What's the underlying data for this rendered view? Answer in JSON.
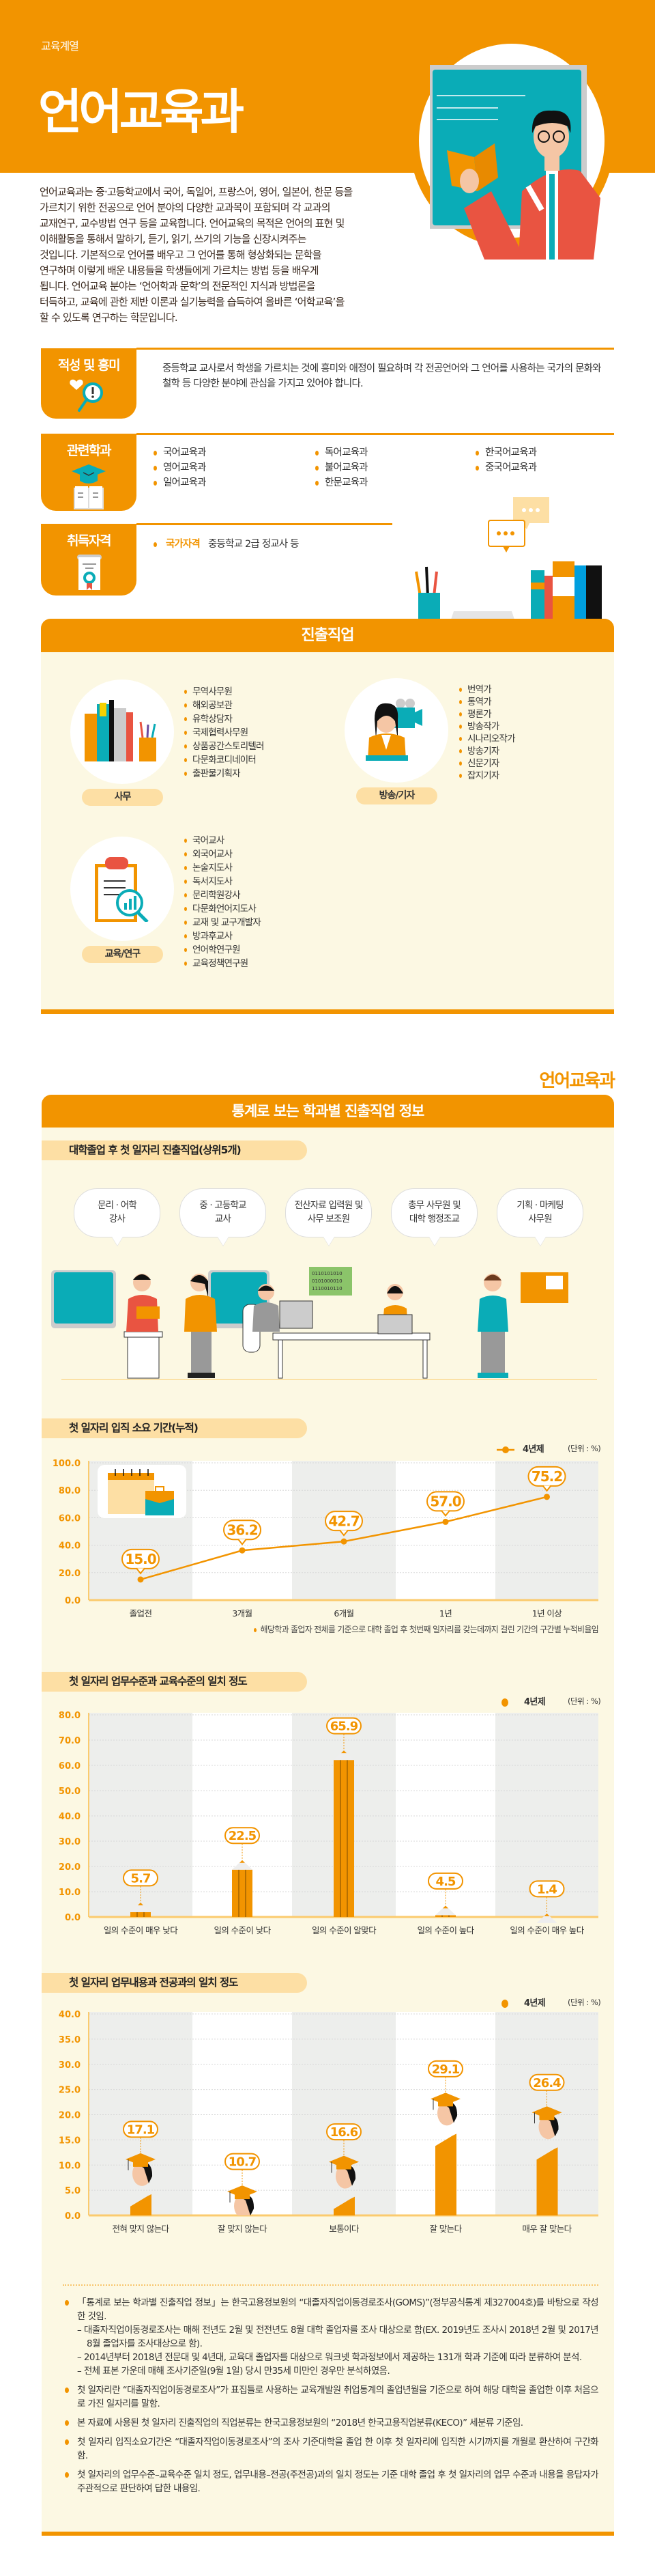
{
  "hero": {
    "category": "교육계열",
    "title": "언어교육과",
    "intro_lines": [
      "언어교육과는 중·고등학교에서 국어, 독일어, 프랑스어, 영어, 일본어, 한문 등을",
      "가르치기 위한 전공으로 언어 분야의 다양한 교과목이 포함되며 각 교과의",
      "교재연구, 교수방법 연구 등을 교육합니다. 언어교육의 목적은 언어의 표현 및",
      "이해활동을 통해서 말하기, 듣기, 읽기, 쓰기의 기능을 신장시켜주는",
      "것입니다. 기본적으로 언어를 배우고 그 언어를 통해 형상화되는 문학을",
      "연구하며 이렇게 배운 내용들을 학생들에게 가르치는 방법 등을 배우게",
      "됩니다. 언어교육 분야는 ‘언어학과 문학’의 전문적인 지식과 방법론을",
      "터득하고, 교육에 관한 제반 이론과 실기능력을 습득하여 올바른 ‘어학교육’을",
      "할 수 있도록 연구하는 학문입니다."
    ]
  },
  "aptitude": {
    "label": "적성 및 흥미",
    "icon": "heart-magnifier-icon",
    "text": "중등학교 교사로서 학생을 가르치는 것에 흥미와 애정이 필요하며 각 전공언어와 그 언어를 사용하는 국가의 문화와 철학 등 다양한 분야에 관심을 가지고 있어야 합니다."
  },
  "related": {
    "label": "관련학과",
    "icon": "graduation-cap-book-icon",
    "columns": [
      [
        "국어교육과",
        "영어교육과",
        "일어교육과"
      ],
      [
        "독어교육과",
        "불어교육과",
        "한문교육과"
      ],
      [
        "한국어교육과",
        "중국어교육과"
      ]
    ]
  },
  "license": {
    "label": "취득자격",
    "icon": "certificate-icon",
    "type": "국가자격",
    "text": "중등학교 2급 정교사 등"
  },
  "careers": {
    "title": "진출직업",
    "groups": [
      {
        "label": "사무",
        "icon": "books-icon",
        "items": [
          "무역사무원",
          "해외공보관",
          "유학상담자",
          "국제협력사무원",
          "상품공간스토리텔러",
          "다문화코디네이터",
          "출판물기획자"
        ]
      },
      {
        "label": "방송/기자",
        "icon": "reporter-camera-icon",
        "items": [
          "번역가",
          "통역가",
          "평론가",
          "방송작가",
          "시나리오작가",
          "방송기자",
          "신문기자",
          "잡지기자"
        ]
      },
      {
        "label": "교육/연구",
        "icon": "clipboard-chart-icon",
        "items": [
          "국어교사",
          "외국어교사",
          "논술지도사",
          "독서지도사",
          "문리학원강사",
          "다문화언어지도사",
          "교재 및 교구개발자",
          "방과후교사",
          "언어학연구원",
          "교육정책연구원"
        ]
      }
    ]
  },
  "stats": {
    "dept_title": "언어교육과",
    "title": "통계로 보는 학과별 진출직업 정보",
    "top_jobs": {
      "title": "대학졸업 후 첫 일자리 진출직업(상위5개)",
      "items": [
        [
          "문리 · 어학",
          "강사"
        ],
        [
          "중 · 고등학교",
          "교사"
        ],
        [
          "전산자료 입력원 및",
          "사무 보조원"
        ],
        [
          "총무 사무원 및",
          "대학 행정조교"
        ],
        [
          "기획 · 마케팅",
          "사무원"
        ]
      ],
      "binary_text": [
        "0110101010",
        "0101000010",
        "1110010110"
      ]
    }
  },
  "chart_data": [
    {
      "type": "line",
      "title": "첫 일자리 입직 소요 기간(누적)",
      "categories": [
        "졸업전",
        "3개월",
        "6개월",
        "1년",
        "1년 이상"
      ],
      "series": [
        {
          "name": "4년제",
          "values": [
            15.0,
            36.2,
            42.7,
            57.0,
            75.2
          ]
        }
      ],
      "ylim": [
        0,
        100
      ],
      "yticks": [
        "0.0",
        "20.0",
        "40.0",
        "60.0",
        "80.0",
        "100.0"
      ],
      "unit": "(단위 : %)",
      "grid": true,
      "legend": "top-right",
      "note": "해당학과 졸업자 전체를 기준으로 대학 졸업 후 첫번째 일자리를 갖는데까지 걸린 기간의 구간별 누적비율임",
      "color": "#F29400"
    },
    {
      "type": "bar",
      "title": "첫 일자리 업무수준과 교육수준의 일치 정도",
      "categories": [
        "일의 수준이 매우 낮다",
        "일의 수준이 낮다",
        "일의 수준이 알맞다",
        "일의 수준이 높다",
        "일의 수준이 매우 높다"
      ],
      "series": [
        {
          "name": "4년제",
          "values": [
            5.7,
            22.5,
            65.9,
            4.5,
            1.4
          ]
        }
      ],
      "ylim": [
        0,
        80
      ],
      "yticks": [
        "0.0",
        "10.0",
        "20.0",
        "30.0",
        "40.0",
        "50.0",
        "60.0",
        "70.0",
        "80.0"
      ],
      "unit": "(단위 : %)",
      "grid": true,
      "legend": "top-right",
      "color": "#F29400"
    },
    {
      "type": "bar",
      "title": "첫 일자리 업무내용과 전공과의 일치 정도",
      "categories": [
        "전혀 맞지 않는다",
        "잘 맞지 않는다",
        "보통이다",
        "잘 맞는다",
        "매우 잘 맞는다"
      ],
      "series": [
        {
          "name": "4년제",
          "values": [
            17.1,
            10.7,
            16.6,
            29.1,
            26.4
          ]
        }
      ],
      "ylim": [
        0,
        40
      ],
      "yticks": [
        "0.0",
        "5.0",
        "10.0",
        "15.0",
        "20.0",
        "25.0",
        "30.0",
        "35.0",
        "40.0"
      ],
      "unit": "(단위 : %)",
      "grid": true,
      "legend": "top-right",
      "color": "#F29400"
    }
  ],
  "notes": [
    {
      "text": "「통계로 보는 학과별 진출직업 정보」는 한국고용정보원의 “대졸자직업이동경로조사(GOMS)”(정부공식통계 제327004호)를 바탕으로 작성한 것임.",
      "subs": [
        "– 대졸자직업이동경로조사는 매해 전년도 2월 및 전전년도 8월 대학 졸업자를 조사 대상으로 함(EX. 2019년도 조사시 2018년 2월 및 2017년 8월 졸업자를 조사대상으로 함).",
        "– 2014년부터 2018년 전문대 및 4년대, 교육대 졸업자를 대상으로 워크넷 학과정보에서 제공하는 131개 학과 기준에 따라 분류하여 분석.",
        "– 전체 표본 가운데 매해 조사기준일(9월 1일) 당시 만35세 미만인 경우만 분석하였음."
      ]
    },
    {
      "text": "첫 일자리란 “대졸자직업이동경로조사”가 표집틀로 사용하는 교육개발원 취업통계의 졸업년월을 기준으로 하여 해당 대학을 졸업한 이후 처음으로 가진 일자리를 말함.",
      "subs": []
    },
    {
      "text": "본 자료에 사용된 첫 일자리 진출직업의 직업분류는 한국고용정보원의 “2018년 한국고용직업분류(KECO)” 세분류 기준임.",
      "subs": []
    },
    {
      "text": "첫 일자리 입직소요기간은 “대졸자직업이동경로조사”의 조사 기준대학을 졸업 한 이후 첫 일자리에 입직한 시기까지를 개월로 환산하여 구간화함.",
      "subs": []
    },
    {
      "text": "첫 일자리의 업무수준–교육수준 일치 정도, 업무내용–전공(주전공)과의 일치 정도는 기준 대학 졸업 후 첫 일자리의 업무 수준과 내용을 응답자가 주관적으로 판단하여 답한 내용임.",
      "subs": []
    }
  ],
  "colors": {
    "accent": "#F29400",
    "light": "#FDDFA4",
    "background": "#FCF8E3",
    "band": "#EDEEEC",
    "teal": "#0AACB7"
  }
}
